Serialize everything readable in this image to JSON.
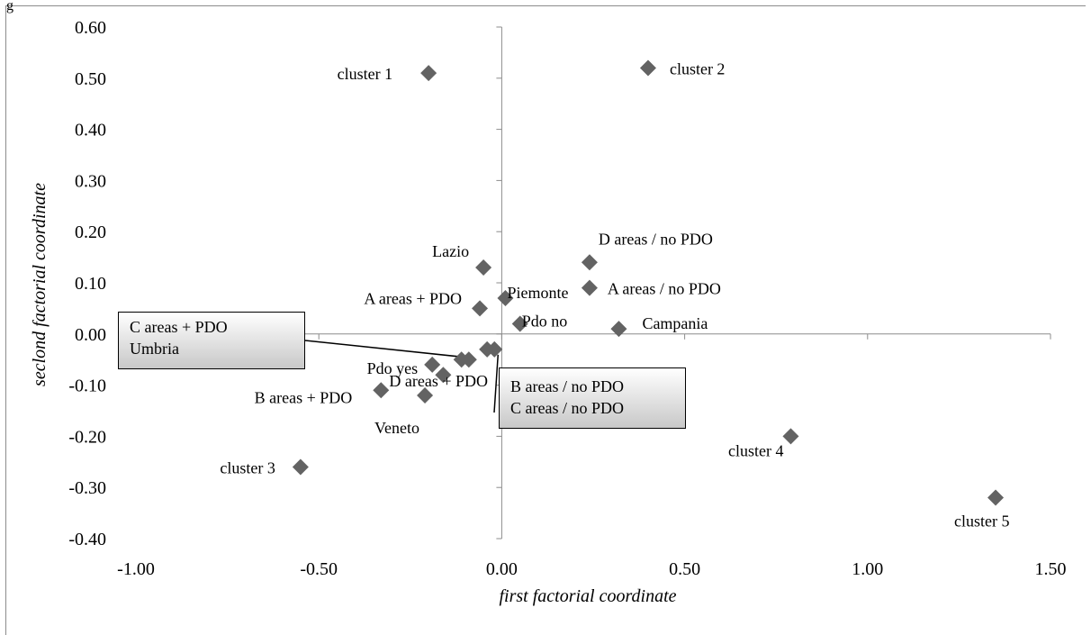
{
  "corner_fragment": "g",
  "chart_data": {
    "type": "scatter",
    "xlabel": "first factorial coordinate",
    "ylabel": "seclond factorial coordinate",
    "xlim": [
      -1.0,
      1.5
    ],
    "ylim": [
      -0.4,
      0.6
    ],
    "x_ticks": [
      "-1.00",
      "-0.50",
      "0.00",
      "0.50",
      "1.00",
      "1.50"
    ],
    "y_ticks": [
      "0.60",
      "0.50",
      "0.40",
      "0.30",
      "0.20",
      "0.10",
      "0.00",
      "-0.10",
      "-0.20",
      "-0.30",
      "-0.40"
    ],
    "marker": "diamond",
    "marker_color": "#636363",
    "grid": false,
    "legend": "none",
    "points": [
      {
        "label": "cluster 1",
        "x": -0.2,
        "y": 0.51
      },
      {
        "label": "cluster 2",
        "x": 0.4,
        "y": 0.52
      },
      {
        "label": "cluster 3",
        "x": -0.55,
        "y": -0.26
      },
      {
        "label": "cluster 4",
        "x": 0.79,
        "y": -0.2
      },
      {
        "label": "cluster 5",
        "x": 1.35,
        "y": -0.32
      },
      {
        "label": "Lazio",
        "x": -0.05,
        "y": 0.13
      },
      {
        "label": "D areas / no PDO",
        "x": 0.24,
        "y": 0.14
      },
      {
        "label": "Piemonte",
        "x": 0.01,
        "y": 0.07
      },
      {
        "label": "A areas / no PDO",
        "x": 0.24,
        "y": 0.09
      },
      {
        "label": "A areas + PDO",
        "x": -0.06,
        "y": 0.05
      },
      {
        "label": "Pdo no",
        "x": 0.05,
        "y": 0.02
      },
      {
        "label": "Campania",
        "x": 0.32,
        "y": 0.01
      },
      {
        "label": "Pdo yes",
        "x": -0.19,
        "y": -0.06
      },
      {
        "label": "D areas + PDO",
        "x": -0.16,
        "y": -0.08
      },
      {
        "label": "B areas + PDO",
        "x": -0.33,
        "y": -0.11
      },
      {
        "label": "Veneto",
        "x": -0.21,
        "y": -0.12
      },
      {
        "label": "C areas + PDO",
        "x": -0.11,
        "y": -0.05
      },
      {
        "label": "Umbria",
        "x": -0.09,
        "y": -0.05
      },
      {
        "label": "B areas / no PDO",
        "x": -0.04,
        "y": -0.03
      },
      {
        "label": "C areas / no PDO",
        "x": -0.02,
        "y": -0.03
      }
    ],
    "callouts": [
      {
        "lines": [
          "C areas + PDO",
          "Umbria"
        ]
      },
      {
        "lines": [
          "B areas / no PDO",
          "C areas / no PDO"
        ]
      }
    ]
  }
}
